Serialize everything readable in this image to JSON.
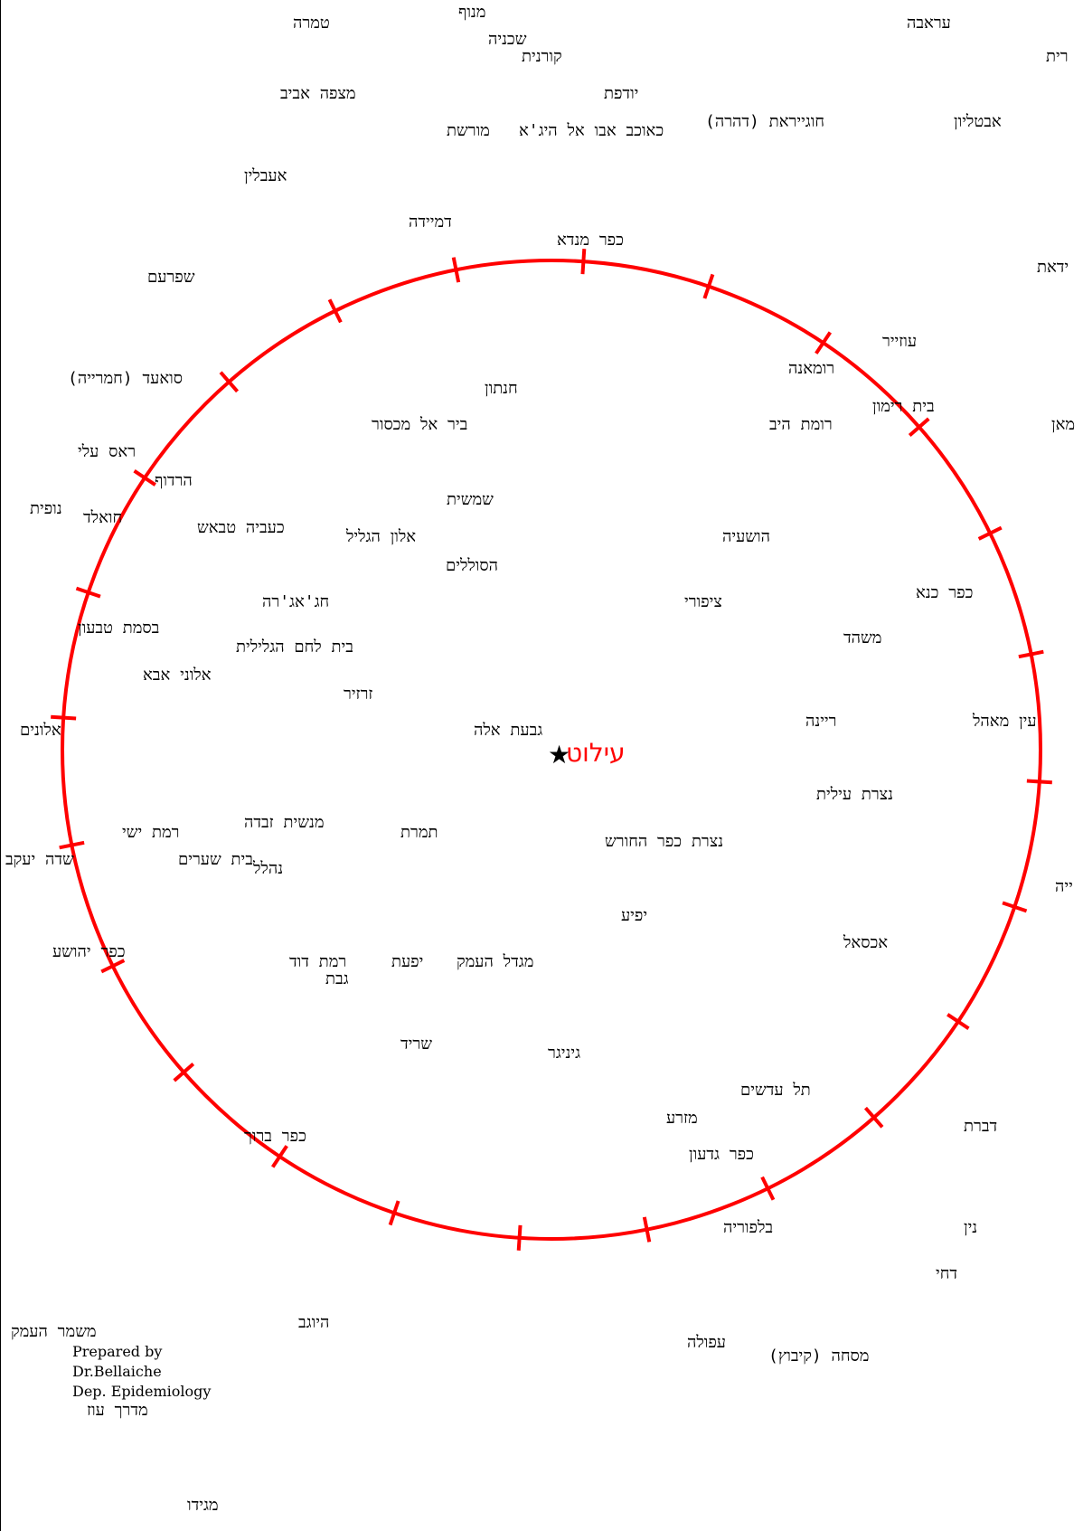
{
  "map": {
    "center": {
      "name": "עילוט"
    },
    "circle_color": "#ff0000",
    "places": [
      {
        "name": "טמרה"
      },
      {
        "name": "מנוף"
      },
      {
        "name": "שכניה"
      },
      {
        "name": "קורנית"
      },
      {
        "name": "עראבה"
      },
      {
        "name": "רית"
      },
      {
        "name": "מצפה אביב"
      },
      {
        "name": "יודפת"
      },
      {
        "name": "כאוכב אבו אל היג'א"
      },
      {
        "name": "מורשת"
      },
      {
        "name": "(חוגייראת (דהרה"
      },
      {
        "name": "אבטליון"
      },
      {
        "name": "אעבלין"
      },
      {
        "name": "דמיידה"
      },
      {
        "name": "כפר מנדא"
      },
      {
        "name": "ידאת"
      },
      {
        "name": "שפרעם"
      },
      {
        "name": "עוזייר"
      },
      {
        "name": "רומאנה"
      },
      {
        "name": "(סואעד (חמרייה"
      },
      {
        "name": "חנתון"
      },
      {
        "name": "בית רימון"
      },
      {
        "name": "ביר אל מכסור"
      },
      {
        "name": "רומת היב"
      },
      {
        "name": "מאן"
      },
      {
        "name": "ראס עלי"
      },
      {
        "name": "הרדוף"
      },
      {
        "name": "שמשית"
      },
      {
        "name": "חואלד"
      },
      {
        "name": "נופית"
      },
      {
        "name": "כעביה טבאש"
      },
      {
        "name": "אלון הגליל"
      },
      {
        "name": "הושעיה"
      },
      {
        "name": "הסוללים"
      },
      {
        "name": "כפר כנא"
      },
      {
        "name": "חג'אג'רה"
      },
      {
        "name": "ציפורי"
      },
      {
        "name": "בסמת טבעון"
      },
      {
        "name": "משהד"
      },
      {
        "name": "בית לחם הגלילית"
      },
      {
        "name": "אלוני אבא"
      },
      {
        "name": "זרזיר"
      },
      {
        "name": "אלונים"
      },
      {
        "name": "גבעת אלה"
      },
      {
        "name": "ריינה"
      },
      {
        "name": "עין מאהל"
      },
      {
        "name": "נצרת עילית"
      },
      {
        "name": "מנשית זבדה"
      },
      {
        "name": "רמת ישי"
      },
      {
        "name": "תמרת"
      },
      {
        "name": "נצרת כפר החורש"
      },
      {
        "name": "שדה יעקב"
      },
      {
        "name": "בית שערים"
      },
      {
        "name": "ייה"
      },
      {
        "name": "נהלל"
      },
      {
        "name": "יפיע"
      },
      {
        "name": "אכסאל"
      },
      {
        "name": "כפר יהושע"
      },
      {
        "name": "רמת דוד"
      },
      {
        "name": "יפעת"
      },
      {
        "name": "מגדל העמק"
      },
      {
        "name": "גבת"
      },
      {
        "name": "שריד"
      },
      {
        "name": "גיניגר"
      },
      {
        "name": "תל עדשים"
      },
      {
        "name": "דברת"
      },
      {
        "name": "מזרע"
      },
      {
        "name": "כפר ברוך"
      },
      {
        "name": "כפר גדעון"
      },
      {
        "name": "בלפוריה"
      },
      {
        "name": "נין"
      },
      {
        "name": "דחי"
      },
      {
        "name": "היוגב"
      },
      {
        "name": "משמר העמק"
      },
      {
        "name": "עפולה"
      },
      {
        "name": "(מסחה (קיבוץ"
      },
      {
        "name": "מדרך עוז"
      },
      {
        "name": "מגידו"
      }
    ],
    "credit": [
      "Prepared by",
      "Dr.Bellaiche",
      "Dep. Epidemiology"
    ]
  }
}
